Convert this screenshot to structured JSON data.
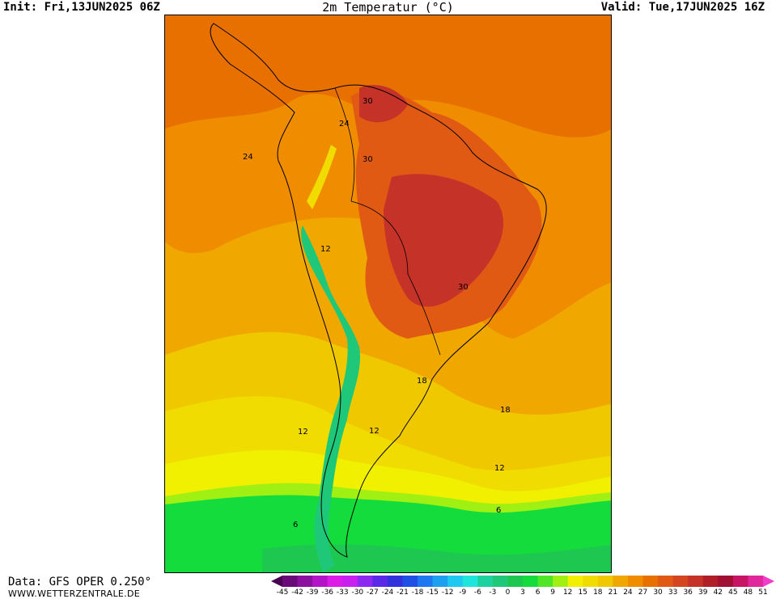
{
  "header": {
    "init": "Init: Fri,13JUN2025 06Z",
    "title": "2m Temperatur (°C)",
    "valid": "Valid: Tue,17JUN2025 16Z"
  },
  "footer": {
    "source": "Data: GFS OPER 0.250°",
    "website": "WWW.WETTERZENTRALE.DE"
  },
  "contour_labels": [
    {
      "text": "30"
    },
    {
      "text": "24"
    },
    {
      "text": "24"
    },
    {
      "text": "30"
    },
    {
      "text": "12"
    },
    {
      "text": "30"
    },
    {
      "text": "18"
    },
    {
      "text": "18"
    },
    {
      "text": "12"
    },
    {
      "text": "12"
    },
    {
      "text": "12"
    },
    {
      "text": "6"
    },
    {
      "text": "6"
    }
  ],
  "colorbar": {
    "ticks": [
      "-45",
      "-42",
      "-39",
      "-36",
      "-33",
      "-30",
      "-27",
      "-24",
      "-21",
      "-18",
      "-15",
      "-12",
      "-9",
      "-6",
      "-3",
      "0",
      "3",
      "6",
      "9",
      "12",
      "15",
      "18",
      "21",
      "24",
      "27",
      "30",
      "33",
      "36",
      "39",
      "42",
      "45",
      "48",
      "51"
    ],
    "colors": [
      "#4a0050",
      "#6a0a78",
      "#8c10a0",
      "#b414c8",
      "#dc1ce6",
      "#c81ef0",
      "#8c28f0",
      "#5a28e6",
      "#3232dc",
      "#1e50e6",
      "#1e78f0",
      "#1ea0f0",
      "#1ec8f0",
      "#1ee6dc",
      "#1ed2a0",
      "#1ec878",
      "#1ec850",
      "#14dc3c",
      "#50e628",
      "#a0f014",
      "#f0f000",
      "#f0dc00",
      "#f0c800",
      "#f0a800",
      "#f08c00",
      "#e87000",
      "#e05a14",
      "#d44620",
      "#c43228",
      "#b01e28",
      "#a01032",
      "#c81464",
      "#e0289c",
      "#f03cc8"
    ]
  },
  "map_colors": {
    "band_51": "#f0a800",
    "band_24": "#f08c00",
    "band_27": "#e87000",
    "band_30": "#e05a14",
    "band_33": "#c43228",
    "band_18": "#f0c800",
    "band_15": "#f0dc00",
    "band_12": "#f0f000",
    "band_9": "#a0f014",
    "band_6": "#14dc3c",
    "band_3": "#1ec850",
    "band_0": "#1ec878"
  }
}
